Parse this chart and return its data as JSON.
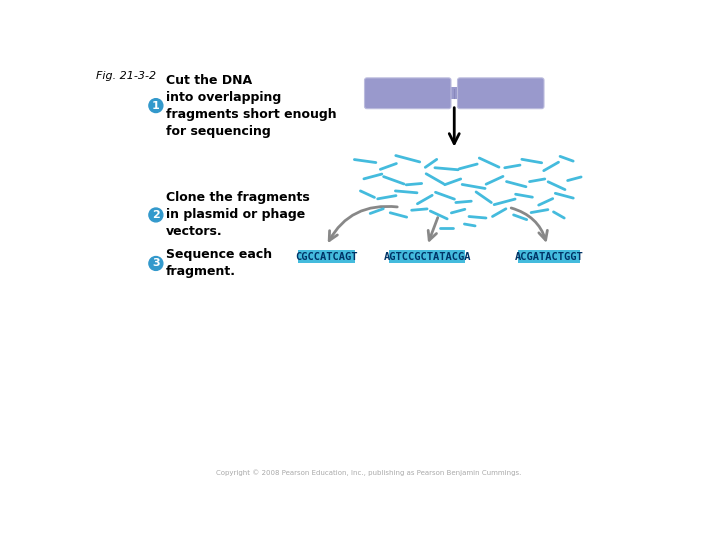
{
  "fig_label": "Fig. 21-3-2",
  "background_color": "#ffffff",
  "step1_text": "Cut the DNA\ninto overlapping\nfragments short enough\nfor sequencing",
  "step2_text": "Clone the fragments\nin plasmid or phage\nvectors.",
  "step3_text": "Sequence each\nfragment.",
  "dna_color": "#9999cc",
  "fragment_color": "#44bbdd",
  "arrow_color": "#888888",
  "seq_box_color": "#44bbdd",
  "seq_text_color": "#003366",
  "seq1": "CGCCATCAGT",
  "seq2": "AGTCCGCTATACGA",
  "seq3": "ACGATACTGGT",
  "circle_color": "#3399cc",
  "label_color": "#000000",
  "copyright_text": "Copyright © 2008 Pearson Education, Inc., publishing as Pearson Benjamin Cummings."
}
